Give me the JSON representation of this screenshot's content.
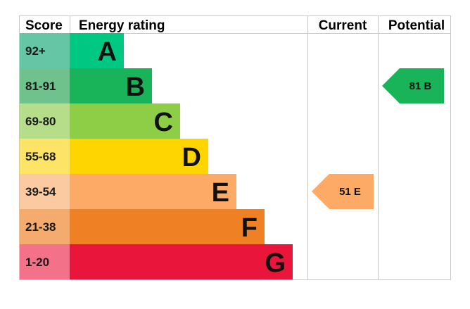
{
  "headers": {
    "score": "Score",
    "energy_rating": "Energy rating",
    "current": "Current",
    "potential": "Potential"
  },
  "chart_data": {
    "type": "bar",
    "categories": [
      "92+",
      "81-91",
      "69-80",
      "55-68",
      "39-54",
      "21-38",
      "1-20"
    ],
    "bands": [
      {
        "score": "92+",
        "letter": "A",
        "color": "#00c781",
        "score_bg": "#64c6a4",
        "length": 1
      },
      {
        "score": "81-91",
        "letter": "B",
        "color": "#19b459",
        "score_bg": "#70c28d",
        "length": 2
      },
      {
        "score": "69-80",
        "letter": "C",
        "color": "#8dce46",
        "score_bg": "#b6de8a",
        "length": 3
      },
      {
        "score": "55-68",
        "letter": "D",
        "color": "#ffd500",
        "score_bg": "#fde366",
        "length": 4
      },
      {
        "score": "39-54",
        "letter": "E",
        "color": "#fcaa65",
        "score_bg": "#fbcaa0",
        "length": 5
      },
      {
        "score": "21-38",
        "letter": "F",
        "color": "#ef8023",
        "score_bg": "#f5ab6e",
        "length": 6
      },
      {
        "score": "1-20",
        "letter": "G",
        "color": "#e9153b",
        "score_bg": "#f37289",
        "length": 7
      }
    ],
    "current": {
      "value": 51,
      "rating": "E",
      "label": "51 E",
      "color": "#fcaa65"
    },
    "potential": {
      "value": 81,
      "rating": "B",
      "label": "81 B",
      "color": "#19b459"
    }
  }
}
